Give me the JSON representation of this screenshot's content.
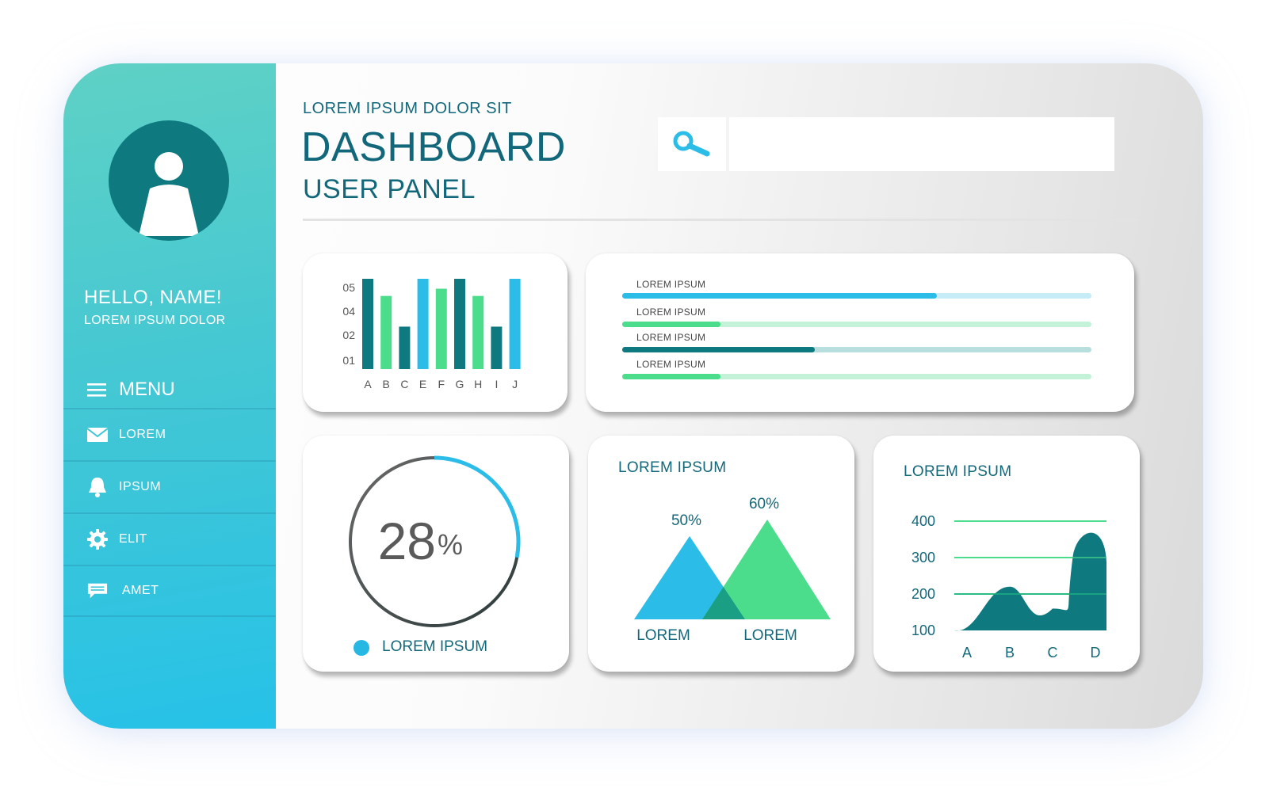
{
  "sidebar": {
    "greeting": "HELLO, NAME!",
    "subtitle": "LOREM IPSUM DOLOR",
    "menu_label": "MENU",
    "items": [
      {
        "label": "LOREM",
        "icon": "mail-icon"
      },
      {
        "label": "IPSUM",
        "icon": "bell-icon"
      },
      {
        "label": "ELIT",
        "icon": "gear-icon"
      },
      {
        "label": "AMET",
        "icon": "message-icon"
      }
    ]
  },
  "header": {
    "kicker": "LOREM IPSUM DOLOR SIT",
    "title": "DASHBOARD",
    "subtitle": "USER PANEL",
    "search_value": "",
    "search_icon": "search-icon"
  },
  "colors": {
    "teal_dark": "#0e7a80",
    "green": "#4cdd8c",
    "blue": "#2bbde8",
    "title_text": "#12687a"
  },
  "progress": {
    "items": [
      {
        "label": "LOREM IPSUM",
        "value": 0.67,
        "color": "#2bbde8",
        "track": "#c5ecf7"
      },
      {
        "label": "LOREM IPSUM",
        "value": 0.21,
        "color": "#4cdd8c",
        "track": "#c4f2d9"
      },
      {
        "label": "LOREM IPSUM",
        "value": 0.41,
        "color": "#0e7a80",
        "track": "#b9dede"
      },
      {
        "label": "LOREM IPSUM",
        "value": 0.21,
        "color": "#4cdd8c",
        "track": "#c4f2d9"
      }
    ]
  },
  "donut": {
    "number": "28",
    "unit": "%",
    "legend": "LOREM IPSUM"
  },
  "triangle_card": {
    "title": "LOREM IPSUM"
  },
  "area_card": {
    "title": "LOREM IPSUM"
  },
  "chart_data": [
    {
      "type": "bar",
      "categories": [
        "A",
        "B",
        "C",
        "E",
        "F",
        "G",
        "H",
        "I",
        "J"
      ],
      "values": [
        5.0,
        4.05,
        2.35,
        5.0,
        4.45,
        5.0,
        4.05,
        2.35,
        5.0
      ],
      "bar_colors": [
        "#0e7a80",
        "#4cdd8c",
        "#0e7a80",
        "#2bbde8",
        "#4cdd8c",
        "#0e7a80",
        "#4cdd8c",
        "#0e7a80",
        "#2bbde8"
      ],
      "y_ticks": [
        "01",
        "02",
        "04",
        "05"
      ],
      "grid": false
    },
    {
      "type": "area",
      "subtype": "triangles",
      "categories": [
        "LOREM",
        "LOREM"
      ],
      "values": [
        50,
        60
      ],
      "labels": [
        "50%",
        "60%"
      ],
      "colors": [
        "#2bbde8",
        "#4cdd8c"
      ]
    },
    {
      "type": "area",
      "title": "LOREM IPSUM",
      "categories": [
        "A",
        "B",
        "C",
        "D"
      ],
      "values": [
        100,
        220,
        160,
        375
      ],
      "ylim": [
        100,
        400
      ],
      "y_ticks": [
        400,
        300,
        200,
        100
      ],
      "grid": true,
      "color": "#0e7a80"
    }
  ]
}
